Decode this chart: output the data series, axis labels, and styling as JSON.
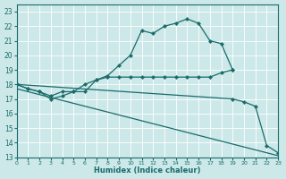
{
  "xlabel": "Humidex (Indice chaleur)",
  "bg_color": "#cce8e8",
  "grid_color": "#b8d8d8",
  "line_color": "#1a6b6b",
  "xlim": [
    0,
    23
  ],
  "ylim": [
    13,
    23.5
  ],
  "xticks": [
    0,
    1,
    2,
    3,
    4,
    5,
    6,
    7,
    8,
    9,
    10,
    11,
    12,
    13,
    14,
    15,
    16,
    17,
    18,
    19,
    20,
    21,
    22,
    23
  ],
  "yticks": [
    13,
    14,
    15,
    16,
    17,
    18,
    19,
    20,
    21,
    22,
    23
  ],
  "line1_x": [
    0,
    1,
    2,
    3,
    4,
    5,
    6,
    7,
    8,
    9,
    10,
    11,
    12,
    13,
    14,
    15,
    16,
    17,
    18,
    19
  ],
  "line1_y": [
    18.0,
    17.7,
    17.5,
    17.0,
    17.2,
    17.5,
    17.5,
    18.3,
    18.6,
    19.3,
    20.0,
    21.7,
    21.5,
    22.0,
    22.2,
    22.5,
    22.2,
    21.0,
    20.8,
    19.0
  ],
  "line2_x": [
    0,
    1,
    2,
    3,
    4,
    5,
    6,
    7,
    8,
    9,
    10,
    11,
    12,
    13,
    14,
    15,
    16,
    17,
    18,
    19
  ],
  "line2_y": [
    18.0,
    17.7,
    17.5,
    17.2,
    17.5,
    17.5,
    18.0,
    18.3,
    18.5,
    18.5,
    18.5,
    18.5,
    18.5,
    18.5,
    18.5,
    18.5,
    18.5,
    18.5,
    18.8,
    19.0
  ],
  "line3_x": [
    0,
    19,
    20,
    21,
    22,
    23
  ],
  "line3_y": [
    18.0,
    17.0,
    16.8,
    16.5,
    13.8,
    13.3
  ],
  "line4_x": [
    0,
    23
  ],
  "line4_y": [
    17.7,
    13.1
  ]
}
